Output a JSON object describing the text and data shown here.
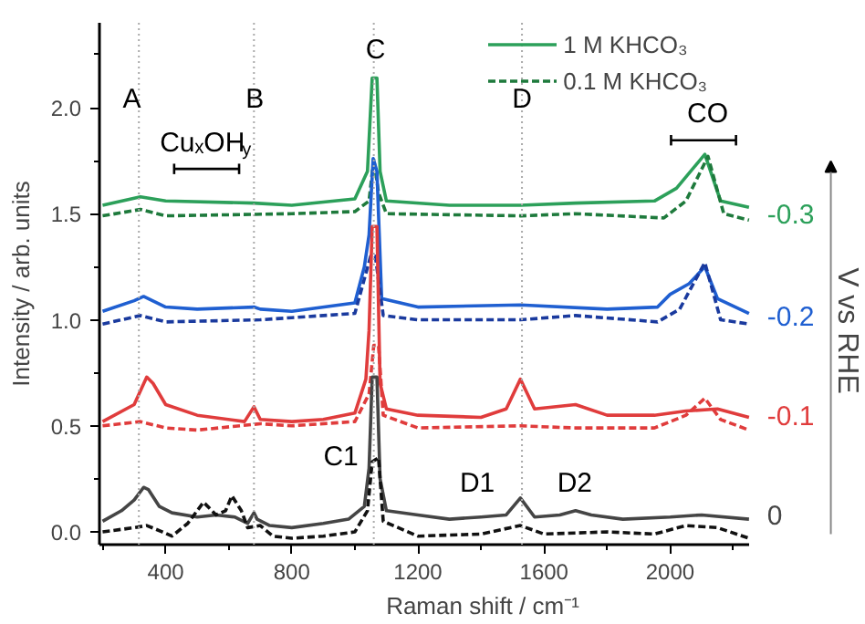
{
  "chart_data": {
    "type": "line",
    "xlabel": "Raman shift / cm⁻¹",
    "ylabel": "Intensity / arb. units",
    "xlim": [
      190,
      2250
    ],
    "ylim": [
      -0.06,
      2.4
    ],
    "xticks": [
      400,
      800,
      1200,
      1600,
      2000
    ],
    "yticks": [
      {
        "value": 0,
        "label": "0.0"
      },
      0.5,
      {
        "value": 1,
        "label": "1.0"
      },
      1.5,
      {
        "value": 2,
        "label": "2.0"
      }
    ],
    "grid": false,
    "legend": "top right",
    "marker": "none",
    "series": [
      {
        "name": "1 M KHCO₃",
        "color": "#2ca05a",
        "line_style": "solid",
        "x": [
          200,
          320,
          400,
          680,
          800,
          1000,
          1040,
          1055,
          1070,
          1080,
          1100,
          1300,
          1525,
          1700,
          1950,
          2020,
          2110,
          2160,
          2250
        ],
        "values": [
          1.54,
          1.58,
          1.56,
          1.55,
          1.54,
          1.57,
          1.7,
          2.14,
          2.14,
          1.7,
          1.56,
          1.54,
          1.54,
          1.55,
          1.56,
          1.62,
          1.78,
          1.56,
          1.53
        ]
      },
      {
        "name": "0.1 M KHCO₃",
        "color": "#1e7a3c",
        "line_style": "dashed",
        "x": [
          200,
          320,
          400,
          800,
          1000,
          1045,
          1060,
          1075,
          1100,
          1525,
          1700,
          1980,
          2050,
          2120,
          2170,
          2250
        ],
        "values": [
          1.49,
          1.52,
          1.49,
          1.5,
          1.51,
          1.56,
          1.76,
          1.6,
          1.5,
          1.49,
          1.5,
          1.48,
          1.56,
          1.77,
          1.5,
          1.47
        ]
      },
      {
        "color": "#1f5fd1",
        "line_style": "solid",
        "x": [
          200,
          300,
          330,
          400,
          500,
          680,
          700,
          800,
          1000,
          1030,
          1045,
          1058,
          1070,
          1085,
          1200,
          1525,
          1800,
          1960,
          2000,
          2060,
          2110,
          2150,
          2250
        ],
        "values": [
          1.04,
          1.09,
          1.11,
          1.06,
          1.05,
          1.06,
          1.05,
          1.04,
          1.08,
          1.25,
          1.4,
          1.76,
          1.7,
          1.1,
          1.06,
          1.07,
          1.05,
          1.06,
          1.12,
          1.17,
          1.25,
          1.1,
          1.03
        ]
      },
      {
        "color": "#1a3a9e",
        "line_style": "dashed",
        "x": [
          200,
          320,
          400,
          700,
          800,
          1000,
          1050,
          1065,
          1090,
          1200,
          1525,
          1700,
          1960,
          2030,
          2110,
          2160,
          2250
        ],
        "values": [
          0.98,
          1.02,
          0.99,
          1.0,
          1.01,
          1.03,
          1.3,
          1.3,
          1.02,
          1.0,
          1.0,
          1.02,
          0.99,
          1.05,
          1.27,
          1.0,
          0.98
        ]
      },
      {
        "color": "#e03c3c",
        "line_style": "solid",
        "x": [
          200,
          300,
          340,
          360,
          400,
          500,
          650,
          680,
          700,
          800,
          900,
          1000,
          1035,
          1045,
          1055,
          1070,
          1080,
          1100,
          1200,
          1400,
          1480,
          1525,
          1570,
          1700,
          1800,
          1950,
          2050,
          2150,
          2250
        ],
        "values": [
          0.52,
          0.6,
          0.73,
          0.7,
          0.6,
          0.55,
          0.52,
          0.59,
          0.53,
          0.52,
          0.53,
          0.56,
          0.72,
          0.95,
          1.44,
          1.44,
          0.7,
          0.58,
          0.55,
          0.54,
          0.58,
          0.72,
          0.58,
          0.6,
          0.55,
          0.55,
          0.57,
          0.58,
          0.54
        ]
      },
      {
        "color": "#e03c3c",
        "line_style": "dashed",
        "x": [
          200,
          320,
          400,
          500,
          700,
          800,
          1000,
          1045,
          1060,
          1075,
          1090,
          1200,
          1525,
          1700,
          1950,
          2050,
          2110,
          2160,
          2250
        ],
        "values": [
          0.5,
          0.52,
          0.49,
          0.48,
          0.51,
          0.5,
          0.52,
          0.65,
          0.88,
          0.88,
          0.55,
          0.49,
          0.5,
          0.49,
          0.49,
          0.55,
          0.63,
          0.53,
          0.48
        ]
      },
      {
        "color": "#454545",
        "line_style": "solid",
        "x": [
          200,
          260,
          300,
          330,
          345,
          380,
          420,
          500,
          560,
          620,
          660,
          680,
          690,
          730,
          800,
          900,
          980,
          1030,
          1045,
          1055,
          1070,
          1080,
          1100,
          1200,
          1300,
          1400,
          1480,
          1525,
          1570,
          1650,
          1700,
          1750,
          1850,
          2000,
          2100,
          2250
        ],
        "values": [
          0.05,
          0.1,
          0.15,
          0.21,
          0.2,
          0.12,
          0.09,
          0.07,
          0.08,
          0.07,
          0.04,
          0.09,
          0.06,
          0.03,
          0.02,
          0.04,
          0.06,
          0.12,
          0.3,
          0.73,
          0.73,
          0.25,
          0.1,
          0.08,
          0.06,
          0.07,
          0.08,
          0.16,
          0.07,
          0.08,
          0.1,
          0.08,
          0.06,
          0.07,
          0.08,
          0.06
        ]
      },
      {
        "color": "#111111",
        "line_style": "dashed",
        "x": [
          200,
          300,
          340,
          390,
          420,
          470,
          520,
          560,
          590,
          610,
          640,
          660,
          700,
          740,
          800,
          900,
          1000,
          1040,
          1055,
          1075,
          1090,
          1200,
          1400,
          1525,
          1600,
          1800,
          1950,
          2050,
          2150,
          2250
        ],
        "values": [
          0.0,
          0.02,
          0.03,
          0.0,
          -0.02,
          0.04,
          0.14,
          0.08,
          0.1,
          0.17,
          0.1,
          0.02,
          0.03,
          -0.02,
          -0.03,
          -0.02,
          0.0,
          0.1,
          0.33,
          0.35,
          0.05,
          -0.02,
          -0.01,
          0.03,
          -0.01,
          0.0,
          -0.01,
          0.03,
          0.02,
          -0.03
        ]
      }
    ],
    "ref_lines": [
      {
        "axis": "x",
        "value": 315,
        "color": "#aaaaaa",
        "line_style": "dotted"
      },
      {
        "axis": "x",
        "value": 680,
        "color": "#aaaaaa",
        "line_style": "dotted"
      },
      {
        "axis": "x",
        "value": 1060,
        "color": "#aaaaaa",
        "line_style": "dotted"
      },
      {
        "axis": "x",
        "value": 1530,
        "color": "#aaaaaa",
        "line_style": "dotted"
      }
    ],
    "annotations": [
      {
        "text": "A",
        "x": 290,
        "y": 2.04
      },
      {
        "text": "B",
        "x": 680,
        "y": 2.04
      },
      {
        "text": "C",
        "x": 1060,
        "y": 2.27
      },
      {
        "text": "D",
        "x": 1525,
        "y": 2.04
      },
      "CuₓOH$_{y}$",
      "CO",
      "C1",
      "D1",
      "D2",
      {
        "text": "-0.3",
        "x": 2250,
        "y": 1.5
      },
      {
        "text": "-0.2",
        "x": 2250,
        "y": 1.02
      },
      {
        "text": "-0.1",
        "x": 2250,
        "y": 0.55
      },
      {
        "text": "0",
        "x": 2250,
        "y": 0.08
      },
      "V vs RHE"
    ]
  }
}
